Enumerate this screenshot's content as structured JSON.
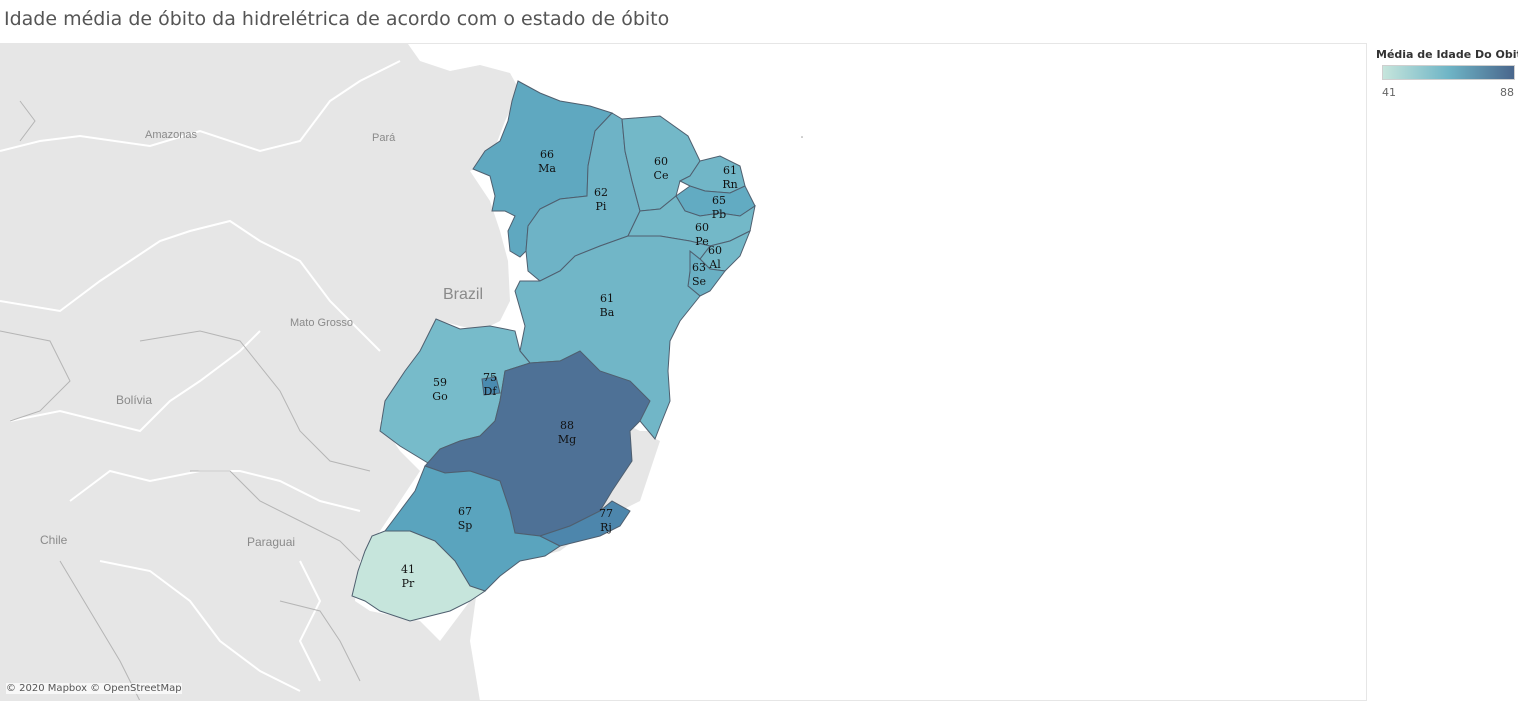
{
  "title": "Idade média de óbito da hidrelétrica de acordo com o estado de óbito",
  "legend": {
    "title": "Média de Idade Do Obito",
    "min": "41",
    "max": "88",
    "color_low": "#c6e5dc",
    "color_high": "#49668c"
  },
  "attribution": "© 2020 Mapbox © OpenStreetMap",
  "base_labels": {
    "amazonas": "Amazonas",
    "para": "Pará",
    "brazil": "Brazil",
    "mato_grosso": "Mato Grosso",
    "bolivia": "Bolívia",
    "chile": "Chile",
    "paraguai": "Paraguai"
  },
  "states": [
    {
      "code": "Ma",
      "value": "66",
      "color": "#5fa8c0"
    },
    {
      "code": "Pi",
      "value": "62",
      "color": "#6eb3c6"
    },
    {
      "code": "Ce",
      "value": "60",
      "color": "#73b8c8"
    },
    {
      "code": "Rn",
      "value": "61",
      "color": "#71b6c7"
    },
    {
      "code": "Pb",
      "value": "65",
      "color": "#62abc2"
    },
    {
      "code": "Pe",
      "value": "60",
      "color": "#73b8c8"
    },
    {
      "code": "Al",
      "value": "60",
      "color": "#73b8c8"
    },
    {
      "code": "Se",
      "value": "63",
      "color": "#6ab0c4"
    },
    {
      "code": "Ba",
      "value": "61",
      "color": "#71b6c7"
    },
    {
      "code": "Go",
      "value": "59",
      "color": "#77bbca"
    },
    {
      "code": "Df",
      "value": "75",
      "color": "#4a8bb0"
    },
    {
      "code": "Mg",
      "value": "88",
      "color": "#4e7196"
    },
    {
      "code": "Sp",
      "value": "67",
      "color": "#5aa4be"
    },
    {
      "code": "Rj",
      "value": "77",
      "color": "#4d86ac"
    },
    {
      "code": "Pr",
      "value": "41",
      "color": "#c6e5dc"
    }
  ]
}
